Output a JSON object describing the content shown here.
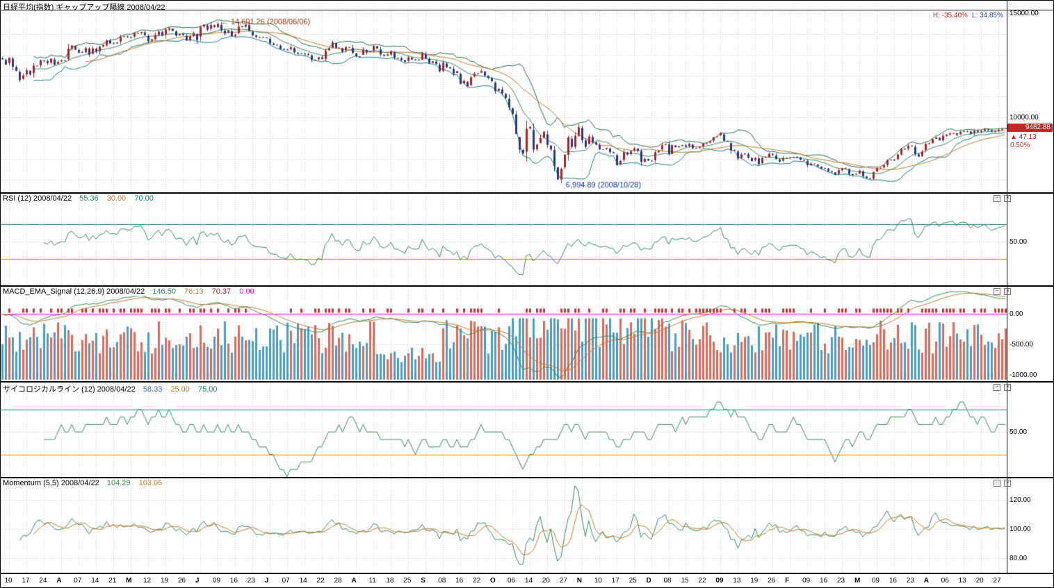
{
  "icons": {
    "minimize_glyph": "−",
    "close_glyph": "×"
  },
  "main_panel": {
    "title": "日経平均(指数) ギャップアップ陽線 2008/04/22",
    "high_label": "H: -35.40%",
    "low_label": "L: 34.85%",
    "price_badge": "9482.88",
    "change": "▲ 47.13",
    "change_pct": "0.50%"
  },
  "legends": {
    "rsi": {
      "name": "RSI (12) 2008/04/22",
      "v1": "55.36",
      "v2": "30.00",
      "v3": "70.00"
    },
    "macd": {
      "name": "MACD_EMA_Signal (12,26,9) 2008/04/22",
      "v1": "146.50",
      "v2": "76.13",
      "v3": "70.37",
      "v4": "0.00"
    },
    "psy": {
      "name": "サイコロジカルライン (12) 2008/04/22",
      "v1": "58.33",
      "v2": "25.00",
      "v3": "75.00"
    },
    "mom": {
      "name": "Momentum (5,5) 2008/04/22",
      "v1": "104.29",
      "v2": "103.05"
    }
  },
  "axes": {
    "main": [
      "15000.00",
      "10000.00"
    ],
    "rsi": [
      "50.00"
    ],
    "macd": [
      "0.00",
      "-500.00",
      "-1000.00"
    ],
    "psy": [
      "50.00"
    ],
    "mom": [
      "120.00",
      "100.00",
      "80.00"
    ]
  },
  "colors": {
    "grid": "#c9c9c9",
    "candle_up": "#aa2222",
    "candle_down": "#27358c",
    "sma10": "#2e8b57",
    "sma25": "#cc7722",
    "band_upper": "#1d6b3c",
    "band_lower": "#0e7c7b",
    "rsi_line": "#2e8b57",
    "ref_teal": "#008080",
    "ref_orange": "#cc8800",
    "macd_line": "#2e8b57",
    "macd_signal": "#cc7722",
    "macd_zero": "#ff00ff",
    "bar_up": "#dd6a5a",
    "bar_down": "#4a9cc9",
    "tick_up": "#cc3333",
    "psy_line": "#2e8b57",
    "mom_line": "#2e8b57",
    "mom_signal": "#cc7722",
    "ann_peak": "#8b3000",
    "ann_trough": "#1a3399",
    "badge_bg": "#cc2222"
  },
  "chart_data": {
    "type": "candlestick",
    "title": "日経平均(指数) ギャップアップ陽線 2008/04/22",
    "x_tick_labels": [
      "10",
      "17",
      "24",
      "A",
      "07",
      "14",
      "21",
      "M",
      "12",
      "19",
      "26",
      "J",
      "09",
      "16",
      "23",
      "J",
      "07",
      "14",
      "22",
      "28",
      "A",
      "11",
      "18",
      "25",
      "S",
      "08",
      "16",
      "22",
      "O",
      "06",
      "14",
      "20",
      "27",
      "N",
      "10",
      "17",
      "25",
      "D",
      "08",
      "15",
      "22",
      "09",
      "13",
      "19",
      "26",
      "F",
      "09",
      "16",
      "23",
      "M",
      "09",
      "16",
      "23",
      "A",
      "06",
      "13",
      "20",
      "27"
    ],
    "x_month_tick_indexes": [
      3,
      7,
      11,
      15,
      20,
      24,
      28,
      33,
      37,
      41,
      45,
      49,
      53
    ],
    "close": [
      12782,
      12532,
      12861,
      12433,
      12241,
      11787,
      12012,
      12260,
      12060,
      12482,
      12480,
      12745,
      12706,
      12604,
      12820,
      12526,
      12656,
      12730,
      12719,
      13293,
      13450,
      13250,
      13111,
      13128,
      13323,
      13010,
      13313,
      13146,
      13398,
      13476,
      13697,
      13547,
      13579,
      13540,
      13863,
      13894,
      13849,
      13850,
      14049,
      14050,
      14102,
      13943,
      13655,
      13743,
      13953,
      14118,
      13925,
      14219,
      14269,
      14160,
      13926,
      13978,
      13942,
      13690,
      13893,
      14054,
      13709,
      14338,
      14440,
      14209,
      14435,
      14341,
      14489,
      14181,
      14021,
      14183,
      13888,
      13973,
      14354,
      14348,
      14452,
      14130,
      13942,
      13857,
      13849,
      13829,
      13822,
      13544,
      13481,
      13463,
      13286,
      13265,
      13237,
      13360,
      13122,
      13052,
      13067,
      13039,
      12997,
      12754,
      12760,
      12887,
      12803,
      13184,
      13312,
      13603,
      13334,
      13353,
      13159,
      13367,
      13376,
      13094,
      12933,
      12914,
      13254,
      13124,
      13168,
      13430,
      13303,
      13023,
      12956,
      13019,
      13165,
      12865,
      12851,
      12752,
      12666,
      12878,
      12778,
      12752,
      12768,
      13073,
      12834,
      12609,
      12689,
      12557,
      12212,
      12624,
      12400,
      12346,
      12102,
      12215,
      11609,
      11749,
      11490,
      11921,
      12090,
      12115,
      12222,
      12006,
      11893,
      11743,
      11260,
      11369,
      11155,
      10938,
      10473,
      10155,
      9203,
      8458,
      8276,
      9448,
      9547,
      8458,
      8693,
      9006,
      9306,
      8675,
      8461,
      7649,
      7021,
      7520,
      8212,
      9030,
      8577,
      9115,
      9521,
      8899,
      8583,
      9081,
      8809,
      8695,
      8462,
      8463,
      8522,
      8328,
      8274,
      7703,
      7910,
      8323,
      8213,
      8373,
      8512,
      8397,
      7863,
      8004,
      7924,
      7918,
      8329,
      8395,
      8660,
      8721,
      8236,
      8664,
      8568,
      8612,
      8667,
      8588,
      8723,
      8517,
      8518,
      8600,
      8739,
      8747,
      8860,
      9043,
      9081,
      9239,
      8876,
      8837,
      8413,
      8438,
      8023,
      8230,
      8256,
      8065,
      7901,
      8051,
      7745,
      8061,
      8106,
      8251,
      8188,
      7994,
      7873,
      8038,
      8039,
      8076,
      8077,
      8076,
      7969,
      7945,
      7705,
      7779,
      7750,
      7645,
      7534,
      7558,
      7416,
      7376,
      7268,
      7461,
      7558,
      7568,
      7280,
      7229,
      7290,
      7433,
      7173,
      7086,
      7054,
      7376,
      7569,
      7570,
      7704,
      7949,
      7972,
      7946,
      8216,
      8488,
      8480,
      8636,
      8626,
      8236,
      8110,
      8351,
      8720,
      8750,
      8958,
      9033,
      8896,
      9116,
      9164,
      9224,
      9243,
      9143,
      9308,
      9338,
      9325,
      9211,
      9347,
      9290,
      9352,
      9432,
      9380,
      9310,
      9355,
      9402,
      9436,
      9483
    ],
    "ylim_main": [
      6400,
      15600
    ],
    "annotations": {
      "peak": {
        "text": "14,601.26 (2008/06/06)",
        "value": 14601.26
      },
      "trough": {
        "text": "6,994.89 (2008/10/28)",
        "value": 6994.89
      },
      "last": {
        "price": 9482.88,
        "change": 47.13,
        "change_pct": 0.5
      },
      "range": {
        "from_high_pct": -35.4,
        "from_low_pct": 34.85
      }
    },
    "panels": [
      {
        "id": "price",
        "type": "candlestick",
        "overlays": [
          "SMA10",
          "SMA25",
          "upper band",
          "lower band"
        ],
        "ylim": [
          6400,
          15600
        ],
        "y_ticks": [
          15000,
          10000
        ]
      },
      {
        "id": "rsi",
        "type": "line",
        "period": 12,
        "current": 55.36,
        "refs": [
          30,
          70
        ],
        "ylim": [
          0,
          105
        ],
        "y_ticks": [
          50
        ]
      },
      {
        "id": "macd",
        "type": "line+histogram",
        "params": [
          12,
          26,
          9
        ],
        "macd_current": 146.5,
        "signal_current": 76.13,
        "osc_current": 70.37,
        "zero": 0,
        "ylim": [
          -1100,
          450
        ],
        "y_ticks": [
          0,
          -500,
          -1000
        ]
      },
      {
        "id": "psychological",
        "type": "line",
        "period": 12,
        "current": 58.33,
        "refs": [
          25,
          75
        ],
        "ylim": [
          0,
          105
        ],
        "y_ticks": [
          50
        ]
      },
      {
        "id": "momentum",
        "type": "line",
        "params": [
          5,
          5
        ],
        "current": 104.29,
        "signal_current": 103.05,
        "ylim": [
          70,
          135
        ],
        "y_ticks": [
          120,
          100,
          80
        ]
      }
    ]
  }
}
